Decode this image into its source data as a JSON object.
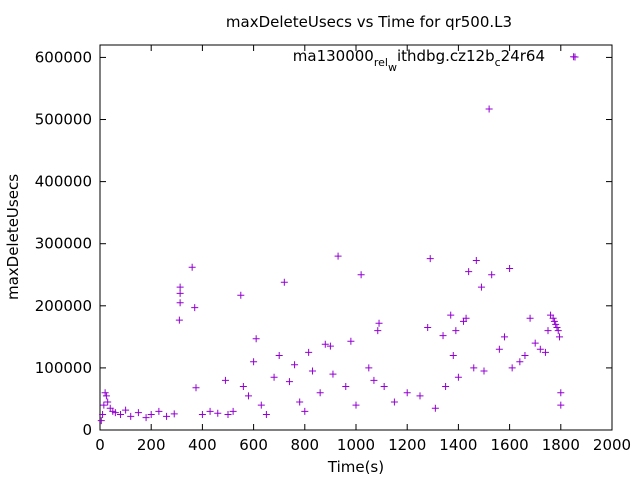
{
  "chart_data": {
    "type": "scatter",
    "title": "maxDeleteUsecs vs Time for qr500.L3",
    "xlabel": "Time(s)",
    "ylabel": "maxDeleteUsecs",
    "xlim": [
      0,
      2000
    ],
    "ylim": [
      0,
      620000
    ],
    "xticks": [
      0,
      200,
      400,
      600,
      800,
      1000,
      1200,
      1400,
      1600,
      1800,
      2000
    ],
    "yticks": [
      0,
      100000,
      200000,
      300000,
      400000,
      500000,
      600000
    ],
    "legend_position": "top-right",
    "grid": false,
    "series": [
      {
        "name": "ma130000_rel_withdbg.cz12b_c24r64",
        "legend_parts": [
          "ma130000",
          "rel",
          "w",
          "ithdbg.cz12b",
          "c",
          "24r64"
        ],
        "color": "#9400d3",
        "marker": "+",
        "points": [
          [
            5,
            15000
          ],
          [
            10,
            25000
          ],
          [
            15,
            40000
          ],
          [
            20,
            60000
          ],
          [
            25,
            55000
          ],
          [
            30,
            45000
          ],
          [
            40,
            35000
          ],
          [
            50,
            30000
          ],
          [
            60,
            28000
          ],
          [
            80,
            25000
          ],
          [
            100,
            32000
          ],
          [
            120,
            22000
          ],
          [
            150,
            28000
          ],
          [
            180,
            20000
          ],
          [
            200,
            25000
          ],
          [
            230,
            30000
          ],
          [
            260,
            22000
          ],
          [
            290,
            26000
          ],
          [
            313,
            230000
          ],
          [
            313,
            220000
          ],
          [
            313,
            205000
          ],
          [
            310,
            177000
          ],
          [
            360,
            262000
          ],
          [
            370,
            197000
          ],
          [
            375,
            68000
          ],
          [
            400,
            25000
          ],
          [
            430,
            30000
          ],
          [
            460,
            27000
          ],
          [
            490,
            80000
          ],
          [
            500,
            25000
          ],
          [
            520,
            30000
          ],
          [
            550,
            217000
          ],
          [
            560,
            70000
          ],
          [
            580,
            55000
          ],
          [
            600,
            110000
          ],
          [
            610,
            147000
          ],
          [
            630,
            40000
          ],
          [
            650,
            25000
          ],
          [
            680,
            85000
          ],
          [
            700,
            120000
          ],
          [
            720,
            238000
          ],
          [
            740,
            78000
          ],
          [
            760,
            105000
          ],
          [
            780,
            45000
          ],
          [
            800,
            30000
          ],
          [
            815,
            125000
          ],
          [
            830,
            95000
          ],
          [
            860,
            60000
          ],
          [
            880,
            138000
          ],
          [
            900,
            135000
          ],
          [
            910,
            90000
          ],
          [
            930,
            280000
          ],
          [
            960,
            70000
          ],
          [
            980,
            143000
          ],
          [
            1000,
            40000
          ],
          [
            1020,
            250000
          ],
          [
            1050,
            100000
          ],
          [
            1070,
            80000
          ],
          [
            1085,
            160000
          ],
          [
            1090,
            172000
          ],
          [
            1110,
            70000
          ],
          [
            1150,
            45000
          ],
          [
            1200,
            60000
          ],
          [
            1250,
            55000
          ],
          [
            1280,
            165000
          ],
          [
            1290,
            276000
          ],
          [
            1310,
            35000
          ],
          [
            1340,
            152000
          ],
          [
            1350,
            70000
          ],
          [
            1370,
            185000
          ],
          [
            1380,
            120000
          ],
          [
            1390,
            160000
          ],
          [
            1400,
            85000
          ],
          [
            1420,
            175000
          ],
          [
            1430,
            180000
          ],
          [
            1440,
            255000
          ],
          [
            1460,
            100000
          ],
          [
            1470,
            273000
          ],
          [
            1490,
            230000
          ],
          [
            1500,
            95000
          ],
          [
            1520,
            517000
          ],
          [
            1530,
            250000
          ],
          [
            1560,
            130000
          ],
          [
            1580,
            150000
          ],
          [
            1600,
            260000
          ],
          [
            1610,
            100000
          ],
          [
            1640,
            110000
          ],
          [
            1660,
            120000
          ],
          [
            1680,
            180000
          ],
          [
            1700,
            140000
          ],
          [
            1720,
            130000
          ],
          [
            1740,
            125000
          ],
          [
            1750,
            160000
          ],
          [
            1760,
            185000
          ],
          [
            1770,
            180000
          ],
          [
            1775,
            175000
          ],
          [
            1780,
            170000
          ],
          [
            1785,
            165000
          ],
          [
            1790,
            160000
          ],
          [
            1795,
            150000
          ],
          [
            1800,
            60000
          ],
          [
            1800,
            40000
          ],
          [
            1850,
            601000
          ]
        ]
      }
    ]
  }
}
